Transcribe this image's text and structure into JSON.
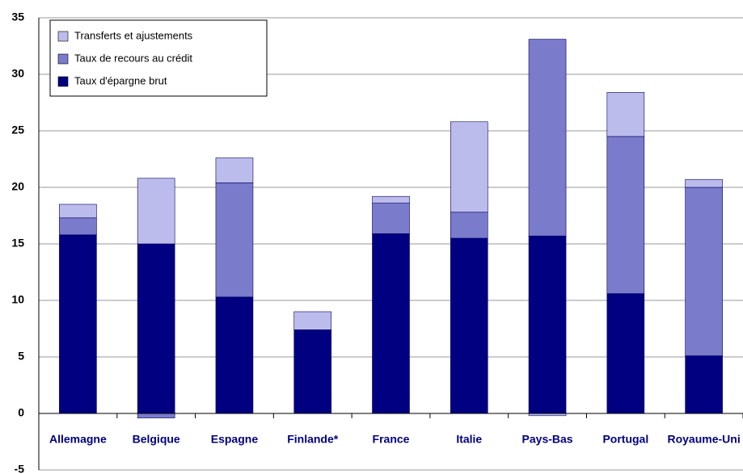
{
  "chart_data": {
    "type": "stacked_bar",
    "categories": [
      "Allemagne",
      "Belgique",
      "Espagne",
      "Finlande*",
      "France",
      "Italie",
      "Pays-Bas",
      "Portugal",
      "Royaume-Uni"
    ],
    "series": [
      {
        "name": "Taux d'épargne brut",
        "color": "#000080",
        "values": [
          15.8,
          15.0,
          10.3,
          7.4,
          15.9,
          15.5,
          15.7,
          10.6,
          5.1
        ]
      },
      {
        "name": "Taux de recours au crédit",
        "color": "#7b7bcc",
        "values": [
          1.5,
          -0.4,
          10.1,
          0,
          2.7,
          2.3,
          17.4,
          13.9,
          14.9
        ]
      },
      {
        "name": "Transferts et ajustements",
        "color": "#bcbcec",
        "values": [
          1.2,
          5.8,
          2.2,
          1.6,
          0.6,
          8.0,
          -0.2,
          3.9,
          0.7
        ]
      }
    ],
    "ylim": [
      -5,
      35
    ],
    "yticks": [
      -5,
      0,
      5,
      10,
      15,
      20,
      25,
      30,
      35
    ],
    "grid": true
  }
}
